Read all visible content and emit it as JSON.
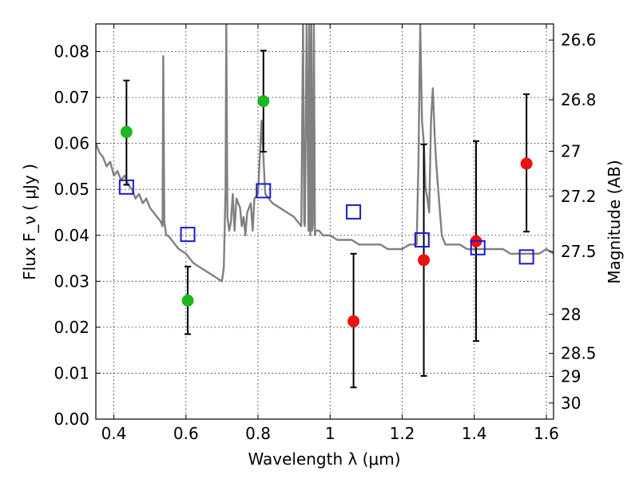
{
  "chart_data": {
    "type": "scatter",
    "title": "",
    "xlabel": "Wavelength  λ (μm)",
    "ylabel": "Flux  F_ν  ( μJy )",
    "ylabel_right": "Magnitude (AB)",
    "xlim": [
      0.35,
      1.62
    ],
    "ylim": [
      0.0,
      0.086
    ],
    "grid": true,
    "x_ticks": [
      0.4,
      0.6,
      0.8,
      1.0,
      1.2,
      1.4,
      1.6
    ],
    "x_tick_labels": [
      "0.4",
      "0.6",
      "0.8",
      "1",
      "1.2",
      "1.4",
      "1.6"
    ],
    "y_ticks": [
      0.0,
      0.01,
      0.02,
      0.03,
      0.04,
      0.05,
      0.06,
      0.07,
      0.08
    ],
    "y_tick_labels": [
      "0.00",
      "0.01",
      "0.02",
      "0.03",
      "0.04",
      "0.05",
      "0.06",
      "0.07",
      "0.08"
    ],
    "right_ticks": [
      {
        "flux": 0.0825,
        "label": "26.6"
      },
      {
        "flux": 0.0695,
        "label": "26.8"
      },
      {
        "flux": 0.0583,
        "label": "27"
      },
      {
        "flux": 0.0485,
        "label": "27.2"
      },
      {
        "flux": 0.0365,
        "label": "27.5"
      },
      {
        "flux": 0.0228,
        "label": "28"
      },
      {
        "flux": 0.0143,
        "label": "28.5"
      },
      {
        "flux": 0.0093,
        "label": "29"
      },
      {
        "flux": 0.0035,
        "label": "30"
      }
    ],
    "series": [
      {
        "marker": "circle",
        "color": "#1cb81c",
        "points": [
          {
            "x": 0.435,
            "y": 0.0625,
            "yerr_low": 0.051,
            "yerr_high": 0.0737
          },
          {
            "x": 0.605,
            "y": 0.0258,
            "yerr_low": 0.0185,
            "yerr_high": 0.0332
          },
          {
            "x": 0.815,
            "y": 0.0692,
            "yerr_low": 0.0582,
            "yerr_high": 0.0802
          }
        ]
      },
      {
        "marker": "circle",
        "color": "#ee1111",
        "points": [
          {
            "x": 1.065,
            "y": 0.0213,
            "yerr_low": 0.0069,
            "yerr_high": 0.036
          },
          {
            "x": 1.26,
            "y": 0.0346,
            "yerr_low": 0.0094,
            "yerr_high": 0.0598
          },
          {
            "x": 1.405,
            "y": 0.0387,
            "yerr_low": 0.017,
            "yerr_high": 0.0605
          },
          {
            "x": 1.545,
            "y": 0.0556,
            "yerr_low": 0.0408,
            "yerr_high": 0.0707
          }
        ]
      },
      {
        "marker": "open-square",
        "color": "#1a1acc",
        "points": [
          {
            "x": 0.435,
            "y": 0.0505
          },
          {
            "x": 0.605,
            "y": 0.0402
          },
          {
            "x": 0.815,
            "y": 0.0497
          },
          {
            "x": 1.065,
            "y": 0.0451
          },
          {
            "x": 1.255,
            "y": 0.039
          },
          {
            "x": 1.41,
            "y": 0.0373
          },
          {
            "x": 1.545,
            "y": 0.0353
          }
        ]
      }
    ],
    "model_spectrum": {
      "color": "#808080",
      "x": [
        0.35,
        0.36,
        0.37,
        0.38,
        0.39,
        0.4,
        0.41,
        0.42,
        0.43,
        0.44,
        0.45,
        0.46,
        0.47,
        0.48,
        0.49,
        0.5,
        0.51,
        0.52,
        0.53,
        0.535,
        0.537,
        0.54,
        0.545,
        0.55,
        0.56,
        0.58,
        0.6,
        0.62,
        0.64,
        0.66,
        0.68,
        0.7,
        0.705,
        0.71,
        0.712,
        0.715,
        0.72,
        0.725,
        0.73,
        0.735,
        0.74,
        0.75,
        0.755,
        0.76,
        0.765,
        0.77,
        0.78,
        0.785,
        0.79,
        0.8,
        0.81,
        0.82,
        0.83,
        0.84,
        0.86,
        0.88,
        0.9,
        0.92,
        0.925,
        0.928,
        0.93,
        0.935,
        0.94,
        0.942,
        0.945,
        0.948,
        0.95,
        0.952,
        0.955,
        0.958,
        0.96,
        0.97,
        0.98,
        1.0,
        1.02,
        1.04,
        1.06,
        1.08,
        1.1,
        1.12,
        1.14,
        1.16,
        1.18,
        1.2,
        1.22,
        1.24,
        1.245,
        1.25,
        1.255,
        1.26,
        1.265,
        1.27,
        1.275,
        1.28,
        1.285,
        1.29,
        1.295,
        1.3,
        1.31,
        1.32,
        1.34,
        1.36,
        1.38,
        1.4,
        1.42,
        1.44,
        1.46,
        1.48,
        1.5,
        1.52,
        1.54,
        1.56,
        1.58,
        1.6,
        1.62
      ],
      "y": [
        0.06,
        0.058,
        0.057,
        0.055,
        0.056,
        0.053,
        0.054,
        0.052,
        0.053,
        0.051,
        0.05,
        0.048,
        0.049,
        0.047,
        0.048,
        0.046,
        0.045,
        0.044,
        0.043,
        0.042,
        0.079,
        0.043,
        0.04,
        0.04,
        0.039,
        0.037,
        0.036,
        0.034,
        0.033,
        0.032,
        0.031,
        0.03,
        0.033,
        0.05,
        0.086,
        0.044,
        0.041,
        0.043,
        0.049,
        0.041,
        0.048,
        0.046,
        0.042,
        0.044,
        0.04,
        0.045,
        0.047,
        0.041,
        0.048,
        0.049,
        0.065,
        0.049,
        0.048,
        0.047,
        0.046,
        0.045,
        0.044,
        0.042,
        0.086,
        0.043,
        0.042,
        0.086,
        0.041,
        0.086,
        0.04,
        0.086,
        0.041,
        0.042,
        0.086,
        0.04,
        0.041,
        0.041,
        0.04,
        0.04,
        0.039,
        0.039,
        0.039,
        0.038,
        0.038,
        0.038,
        0.038,
        0.037,
        0.037,
        0.037,
        0.038,
        0.038,
        0.055,
        0.086,
        0.065,
        0.06,
        0.05,
        0.048,
        0.045,
        0.065,
        0.072,
        0.062,
        0.055,
        0.05,
        0.04,
        0.038,
        0.038,
        0.038,
        0.037,
        0.037,
        0.037,
        0.037,
        0.037,
        0.037,
        0.036,
        0.036,
        0.036,
        0.036,
        0.036,
        0.037,
        0.036
      ]
    }
  }
}
